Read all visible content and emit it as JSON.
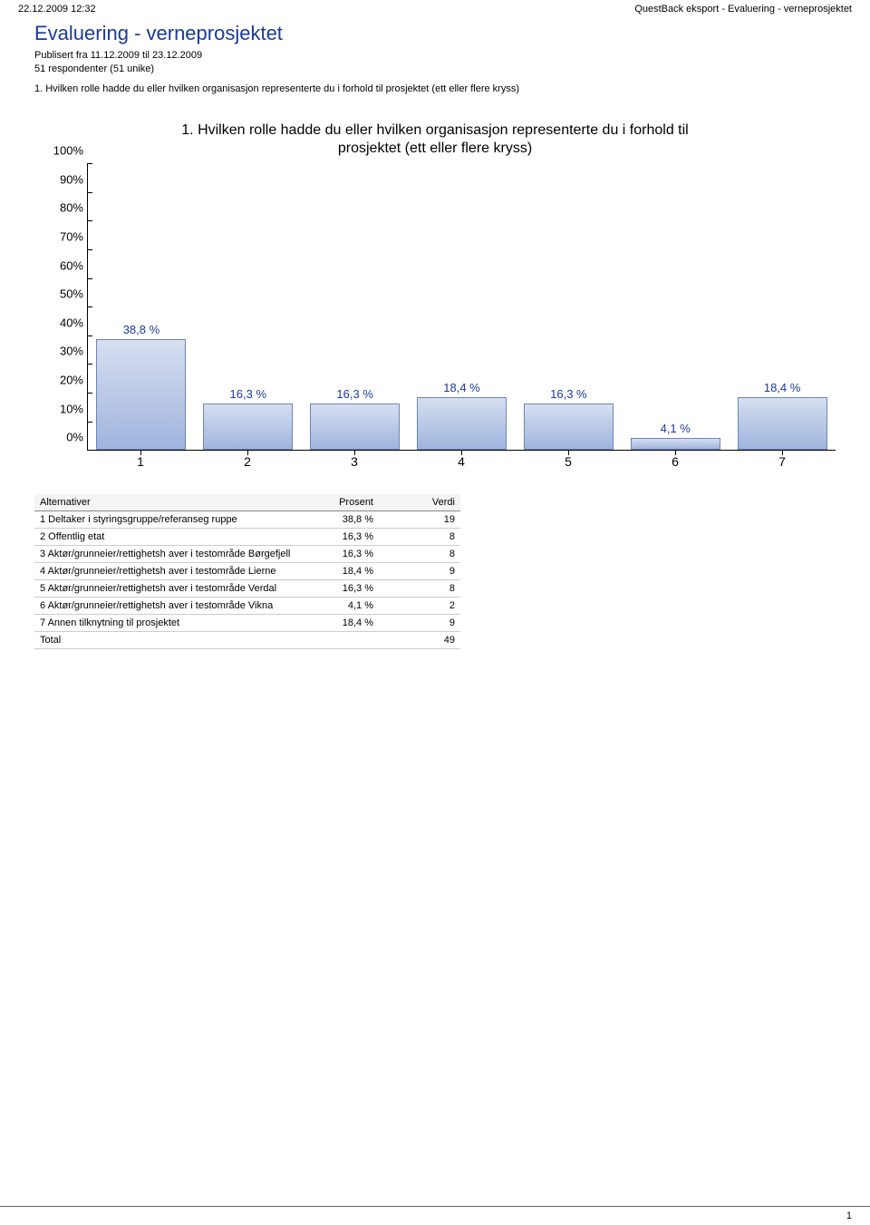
{
  "header": {
    "timestamp": "22.12.2009 12:32",
    "export_label": "QuestBack eksport - Evaluering - verneprosjektet"
  },
  "title": "Evaluering - verneprosjektet",
  "meta": {
    "published": "Publisert fra 11.12.2009 til 23.12.2009",
    "respondents": "51 respondenter (51 unike)"
  },
  "question": "1. Hvilken rolle hadde du eller hvilken organisasjon representerte du i forhold til prosjektet (ett eller flere kryss)",
  "chart": {
    "type": "bar",
    "title_line1": "1. Hvilken rolle hadde du eller hvilken organisasjon representerte du i forhold til",
    "title_line2": "prosjektet (ett eller flere kryss)",
    "y_ticks": [
      "0%",
      "10%",
      "20%",
      "30%",
      "40%",
      "50%",
      "60%",
      "70%",
      "80%",
      "90%",
      "100%"
    ],
    "ymax": 100,
    "categories": [
      "1",
      "2",
      "3",
      "4",
      "5",
      "6",
      "7"
    ],
    "values": [
      38.8,
      16.3,
      16.3,
      18.4,
      16.3,
      4.1,
      18.4
    ],
    "bar_labels": [
      "38,8 %",
      "16,3 %",
      "16,3 %",
      "18,4 %",
      "16,3 %",
      "4,1 %",
      "18,4 %"
    ],
    "bar_fill_top": "#d7dff0",
    "bar_fill_bottom": "#9fb4dd",
    "bar_border": "#6b86b8",
    "label_color": "#1a3a9a",
    "background": "#ffffff"
  },
  "table": {
    "headers": {
      "alt": "Alternativer",
      "pct": "Prosent",
      "val": "Verdi"
    },
    "rows": [
      {
        "alt": "1 Deltaker i styringsgruppe/referanseg ruppe",
        "pct": "38,8 %",
        "val": "19"
      },
      {
        "alt": "2 Offentlig etat",
        "pct": "16,3 %",
        "val": "8"
      },
      {
        "alt": "3 Aktør/grunneier/rettighetsh aver i testområde Børgefjell",
        "pct": "16,3 %",
        "val": "8"
      },
      {
        "alt": "4 Aktør/grunneier/rettighetsh aver i testområde Lierne",
        "pct": "18,4 %",
        "val": "9"
      },
      {
        "alt": "5 Aktør/grunneier/rettighetsh aver i testområde Verdal",
        "pct": "16,3 %",
        "val": "8"
      },
      {
        "alt": "6 Aktør/grunneier/rettighetsh aver i testområde Vikna",
        "pct": "4,1 %",
        "val": "2"
      },
      {
        "alt": "7 Annen tilknytning til prosjektet",
        "pct": "18,4 %",
        "val": "9"
      }
    ],
    "total": {
      "alt": "Total",
      "pct": "",
      "val": "49"
    }
  },
  "footer": {
    "page": "1"
  }
}
